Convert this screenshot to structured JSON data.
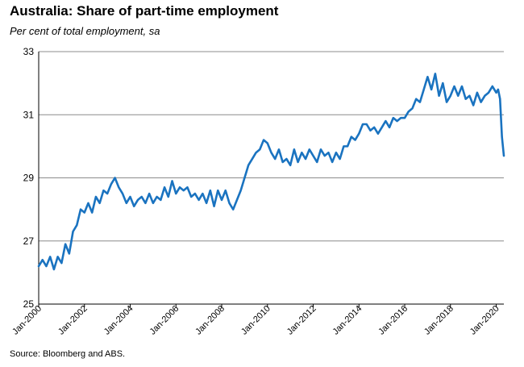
{
  "title": "Australia: Share of part-time employment",
  "subtitle": "Per cent of total employment, sa",
  "source": "Source: Bloomberg and ABS.",
  "colors": {
    "line": "#1a73c0",
    "grid": "#8c8c8c",
    "axis": "#000000"
  },
  "chart_data": {
    "type": "line",
    "title": "Australia: Share of part-time employment",
    "subtitle": "Per cent of total employment, sa",
    "xlabel": "",
    "ylabel": "",
    "ylim": [
      25,
      33
    ],
    "xlim": [
      "2000-01",
      "2020-05"
    ],
    "grid": "horizontal",
    "y_ticks": [
      "25",
      "27",
      "29",
      "31",
      "33"
    ],
    "x_ticks": [
      "Jan-2000",
      "Jan-2002",
      "Jan-2004",
      "Jan-2006",
      "Jan-2008",
      "Jan-2010",
      "Jan-2012",
      "Jan-2014",
      "Jan-2016",
      "Jan-2018",
      "Jan-2020"
    ],
    "series": [
      {
        "values": [
          [
            "2000-01",
            26.2
          ],
          [
            "2000-03",
            26.4
          ],
          [
            "2000-05",
            26.2
          ],
          [
            "2000-07",
            26.5
          ],
          [
            "2000-09",
            26.1
          ],
          [
            "2000-11",
            26.5
          ],
          [
            "2001-01",
            26.3
          ],
          [
            "2001-03",
            26.9
          ],
          [
            "2001-05",
            26.6
          ],
          [
            "2001-07",
            27.3
          ],
          [
            "2001-09",
            27.5
          ],
          [
            "2001-11",
            28.0
          ],
          [
            "2002-01",
            27.9
          ],
          [
            "2002-03",
            28.2
          ],
          [
            "2002-05",
            27.9
          ],
          [
            "2002-07",
            28.4
          ],
          [
            "2002-09",
            28.2
          ],
          [
            "2002-11",
            28.6
          ],
          [
            "2003-01",
            28.5
          ],
          [
            "2003-03",
            28.8
          ],
          [
            "2003-05",
            29.0
          ],
          [
            "2003-07",
            28.7
          ],
          [
            "2003-09",
            28.5
          ],
          [
            "2003-11",
            28.2
          ],
          [
            "2004-01",
            28.4
          ],
          [
            "2004-03",
            28.1
          ],
          [
            "2004-05",
            28.3
          ],
          [
            "2004-07",
            28.4
          ],
          [
            "2004-09",
            28.2
          ],
          [
            "2004-11",
            28.5
          ],
          [
            "2005-01",
            28.2
          ],
          [
            "2005-03",
            28.4
          ],
          [
            "2005-05",
            28.3
          ],
          [
            "2005-07",
            28.7
          ],
          [
            "2005-09",
            28.4
          ],
          [
            "2005-11",
            28.9
          ],
          [
            "2006-01",
            28.5
          ],
          [
            "2006-03",
            28.7
          ],
          [
            "2006-05",
            28.6
          ],
          [
            "2006-07",
            28.7
          ],
          [
            "2006-09",
            28.4
          ],
          [
            "2006-11",
            28.5
          ],
          [
            "2007-01",
            28.3
          ],
          [
            "2007-03",
            28.5
          ],
          [
            "2007-05",
            28.2
          ],
          [
            "2007-07",
            28.6
          ],
          [
            "2007-09",
            28.1
          ],
          [
            "2007-11",
            28.6
          ],
          [
            "2008-01",
            28.3
          ],
          [
            "2008-03",
            28.6
          ],
          [
            "2008-05",
            28.2
          ],
          [
            "2008-07",
            28.0
          ],
          [
            "2008-09",
            28.3
          ],
          [
            "2008-11",
            28.6
          ],
          [
            "2009-01",
            29.0
          ],
          [
            "2009-03",
            29.4
          ],
          [
            "2009-05",
            29.6
          ],
          [
            "2009-07",
            29.8
          ],
          [
            "2009-09",
            29.9
          ],
          [
            "2009-11",
            30.2
          ],
          [
            "2010-01",
            30.1
          ],
          [
            "2010-03",
            29.8
          ],
          [
            "2010-05",
            29.6
          ],
          [
            "2010-07",
            29.9
          ],
          [
            "2010-09",
            29.5
          ],
          [
            "2010-11",
            29.6
          ],
          [
            "2011-01",
            29.4
          ],
          [
            "2011-03",
            29.9
          ],
          [
            "2011-05",
            29.5
          ],
          [
            "2011-07",
            29.8
          ],
          [
            "2011-09",
            29.6
          ],
          [
            "2011-11",
            29.9
          ],
          [
            "2012-01",
            29.7
          ],
          [
            "2012-03",
            29.5
          ],
          [
            "2012-05",
            29.9
          ],
          [
            "2012-07",
            29.7
          ],
          [
            "2012-09",
            29.8
          ],
          [
            "2012-11",
            29.5
          ],
          [
            "2013-01",
            29.8
          ],
          [
            "2013-03",
            29.6
          ],
          [
            "2013-05",
            30.0
          ],
          [
            "2013-07",
            30.0
          ],
          [
            "2013-09",
            30.3
          ],
          [
            "2013-11",
            30.2
          ],
          [
            "2014-01",
            30.4
          ],
          [
            "2014-03",
            30.7
          ],
          [
            "2014-05",
            30.7
          ],
          [
            "2014-07",
            30.5
          ],
          [
            "2014-09",
            30.6
          ],
          [
            "2014-11",
            30.4
          ],
          [
            "2015-01",
            30.6
          ],
          [
            "2015-03",
            30.8
          ],
          [
            "2015-05",
            30.6
          ],
          [
            "2015-07",
            30.9
          ],
          [
            "2015-09",
            30.8
          ],
          [
            "2015-11",
            30.9
          ],
          [
            "2016-01",
            30.9
          ],
          [
            "2016-03",
            31.1
          ],
          [
            "2016-05",
            31.2
          ],
          [
            "2016-07",
            31.5
          ],
          [
            "2016-09",
            31.4
          ],
          [
            "2016-11",
            31.8
          ],
          [
            "2017-01",
            32.2
          ],
          [
            "2017-03",
            31.8
          ],
          [
            "2017-05",
            32.3
          ],
          [
            "2017-07",
            31.6
          ],
          [
            "2017-09",
            32.0
          ],
          [
            "2017-11",
            31.4
          ],
          [
            "2018-01",
            31.6
          ],
          [
            "2018-03",
            31.9
          ],
          [
            "2018-05",
            31.6
          ],
          [
            "2018-07",
            31.9
          ],
          [
            "2018-09",
            31.5
          ],
          [
            "2018-11",
            31.6
          ],
          [
            "2019-01",
            31.3
          ],
          [
            "2019-03",
            31.7
          ],
          [
            "2019-05",
            31.4
          ],
          [
            "2019-07",
            31.6
          ],
          [
            "2019-09",
            31.7
          ],
          [
            "2019-11",
            31.9
          ],
          [
            "2020-01",
            31.7
          ],
          [
            "2020-02",
            31.8
          ],
          [
            "2020-03",
            31.5
          ],
          [
            "2020-04",
            30.3
          ],
          [
            "2020-05",
            29.7
          ]
        ]
      }
    ]
  }
}
